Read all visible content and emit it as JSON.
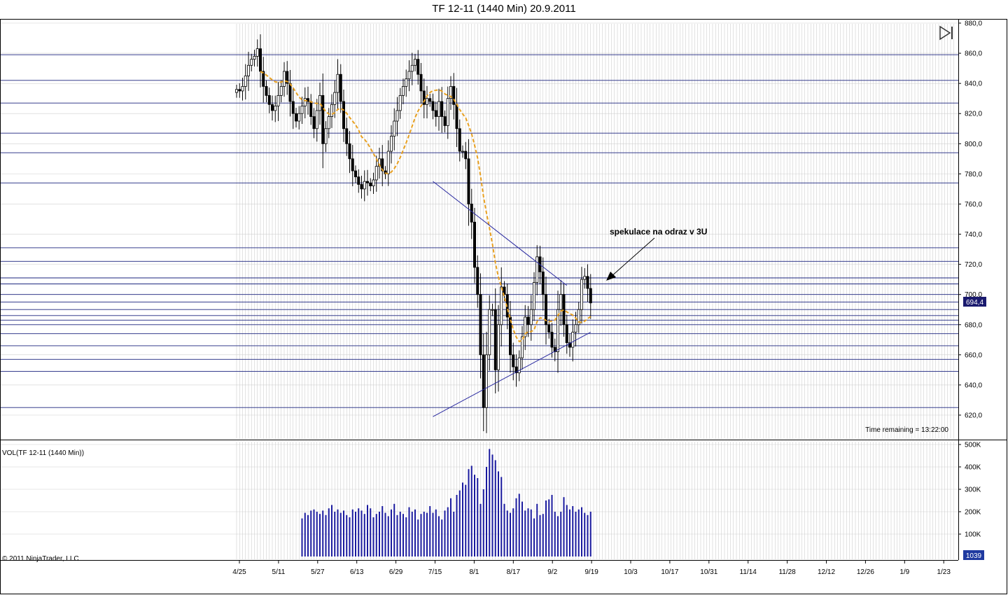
{
  "header": {
    "title": "TF 12-11 (1440 Min)  20.9.2011"
  },
  "volume_panel": {
    "label": "VOL(TF 12-11 (1440 Min))"
  },
  "copyright": "© 2011 NinjaTrader, LLC",
  "time_remaining": "Time remaining = 13:22:00",
  "annotation": "spekulace na odraz v 3U",
  "colors": {
    "up_candle": "#ffffff",
    "down_candle": "#000000",
    "sma": "#e8a020",
    "hlines": "#1a237e",
    "volume_bars": "#1a1a9e",
    "last_price_tag": "#1a1a6e",
    "volume_tag": "#1f3aa0"
  },
  "icons": {
    "toolbar": "play-to-end-icon"
  },
  "chart_data": [
    {
      "type": "candlestick",
      "title": "TF 12-11 (1440 Min)  20.9.2011",
      "ylim": [
        610,
        880
      ],
      "y_ticks": [
        "880,0",
        "860,0",
        "840,0",
        "820,0",
        "800,0",
        "780,0",
        "760,0",
        "740,0",
        "720,0",
        "700,0",
        "680,0",
        "660,0",
        "640,0",
        "620,0"
      ],
      "x_ticks": [
        "4/25",
        "5/11",
        "5/27",
        "6/13",
        "6/29",
        "7/15",
        "8/1",
        "8/17",
        "9/2",
        "9/19",
        "10/3",
        "10/17",
        "10/31",
        "11/14",
        "11/28",
        "12/12",
        "12/26",
        "1/9",
        "1/23"
      ],
      "last_price": "694,4",
      "last_price_value": 694.4,
      "close": [
        836,
        835,
        838,
        845,
        852,
        856,
        858,
        863,
        848,
        838,
        832,
        826,
        822,
        825,
        832,
        838,
        848,
        840,
        828,
        820,
        815,
        820,
        825,
        830,
        828,
        818,
        810,
        822,
        832,
        800,
        810,
        818,
        826,
        834,
        846,
        828,
        810,
        800,
        790,
        782,
        778,
        773,
        770,
        775,
        774,
        772,
        776,
        785,
        790,
        782,
        780,
        795,
        805,
        815,
        822,
        832,
        838,
        843,
        848,
        852,
        856,
        846,
        835,
        826,
        830,
        828,
        822,
        818,
        828,
        818,
        812,
        830,
        838,
        826,
        810,
        795,
        795,
        790,
        760,
        748,
        718,
        700,
        660,
        625,
        660,
        690,
        690,
        650,
        680,
        705,
        700,
        685,
        660,
        652,
        648,
        658,
        672,
        685,
        680,
        690,
        708,
        725,
        715,
        700,
        680,
        675,
        665,
        662,
        690,
        700,
        680,
        668,
        665,
        675,
        680,
        690,
        710,
        712,
        704,
        694.4
      ],
      "sma_period_label": "",
      "support_resistance_levels": [
        859,
        842,
        827,
        807,
        794,
        774,
        731,
        722,
        711,
        707,
        700,
        695,
        690,
        686,
        683,
        680,
        674,
        666,
        657,
        649,
        625
      ],
      "trendlines": [
        {
          "from": {
            "bar": 66,
            "value": 775
          },
          "to": {
            "bar": 111,
            "value": 706
          }
        },
        {
          "from": {
            "bar": 66,
            "value": 619
          },
          "to": {
            "bar": 119,
            "value": 675
          }
        }
      ]
    },
    {
      "type": "bar",
      "title": "VOL(TF 12-11 (1440 Min))",
      "ylim": [
        0,
        500000
      ],
      "y_ticks": [
        "500K",
        "400K",
        "300K",
        "200K",
        "100K"
      ],
      "last_volume": "1039",
      "values_k": [
        0,
        0,
        0,
        0,
        0,
        0,
        0,
        0,
        0,
        0,
        0,
        0,
        0,
        0,
        0,
        0,
        0,
        0,
        0,
        0,
        0,
        0,
        170,
        195,
        185,
        205,
        210,
        200,
        190,
        205,
        185,
        215,
        230,
        200,
        210,
        195,
        205,
        185,
        175,
        210,
        200,
        215,
        205,
        190,
        230,
        215,
        175,
        190,
        200,
        225,
        195,
        180,
        210,
        235,
        185,
        200,
        190,
        175,
        220,
        200,
        210,
        165,
        190,
        200,
        195,
        225,
        195,
        210,
        180,
        165,
        205,
        220,
        260,
        200,
        275,
        295,
        330,
        320,
        390,
        405,
        365,
        350,
        235,
        300,
        400,
        480,
        455,
        430,
        380,
        355,
        235,
        205,
        195,
        215,
        260,
        280,
        245,
        205,
        215,
        210,
        170,
        235,
        185,
        190,
        250,
        255,
        275,
        200,
        180,
        200,
        265,
        230,
        210,
        225,
        200,
        210,
        220,
        195,
        185,
        200
      ]
    }
  ]
}
